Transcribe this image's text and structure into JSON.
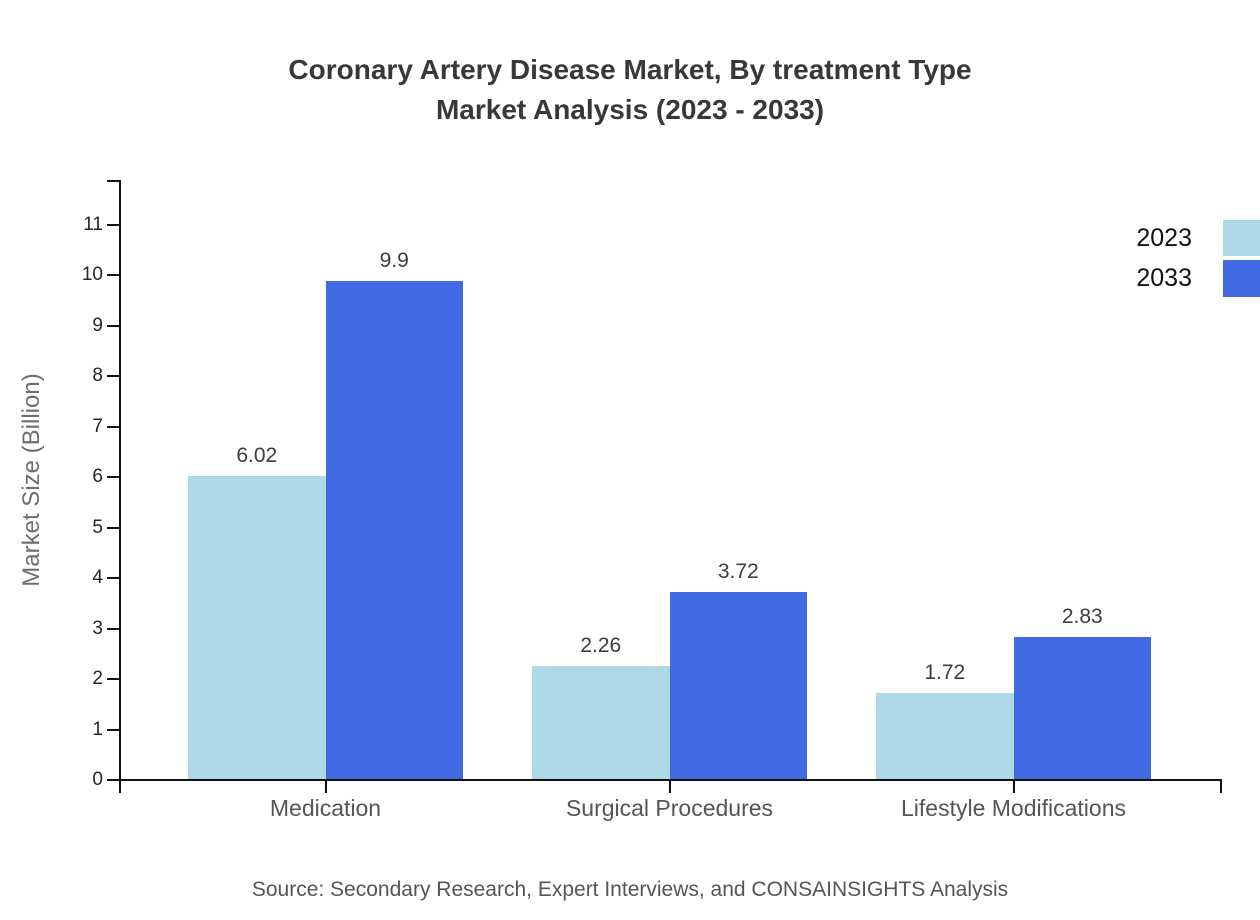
{
  "title": {
    "line1": "Coronary Artery Disease Market, By treatment Type",
    "line2": "Market Analysis (2023 - 2033)"
  },
  "source": "Source: Secondary Research, Expert Interviews, and CONSAINSIGHTS Analysis",
  "chart_data": {
    "type": "bar",
    "title": "Coronary Artery Disease Market, By treatment Type Market Analysis (2023 - 2033)",
    "categories": [
      "Medication",
      "Surgical Procedures",
      "Lifestyle Modifications"
    ],
    "series": [
      {
        "name": "2023",
        "color": "#ADD8E6",
        "values": [
          6.02,
          2.26,
          1.72
        ]
      },
      {
        "name": "2033",
        "color": "#4169E1",
        "values": [
          9.9,
          3.72,
          2.83
        ]
      }
    ],
    "xlabel": "",
    "ylabel": "Market Size (Billion)",
    "ylim": [
      0,
      11.9
    ],
    "yticks": [
      0,
      1,
      2,
      3,
      4,
      5,
      6,
      7,
      8,
      9,
      10,
      11
    ],
    "grid": false,
    "legend_position": "top-right",
    "value_labels": true,
    "axis_color": "#111111",
    "label_color": "#3d3d3d"
  }
}
